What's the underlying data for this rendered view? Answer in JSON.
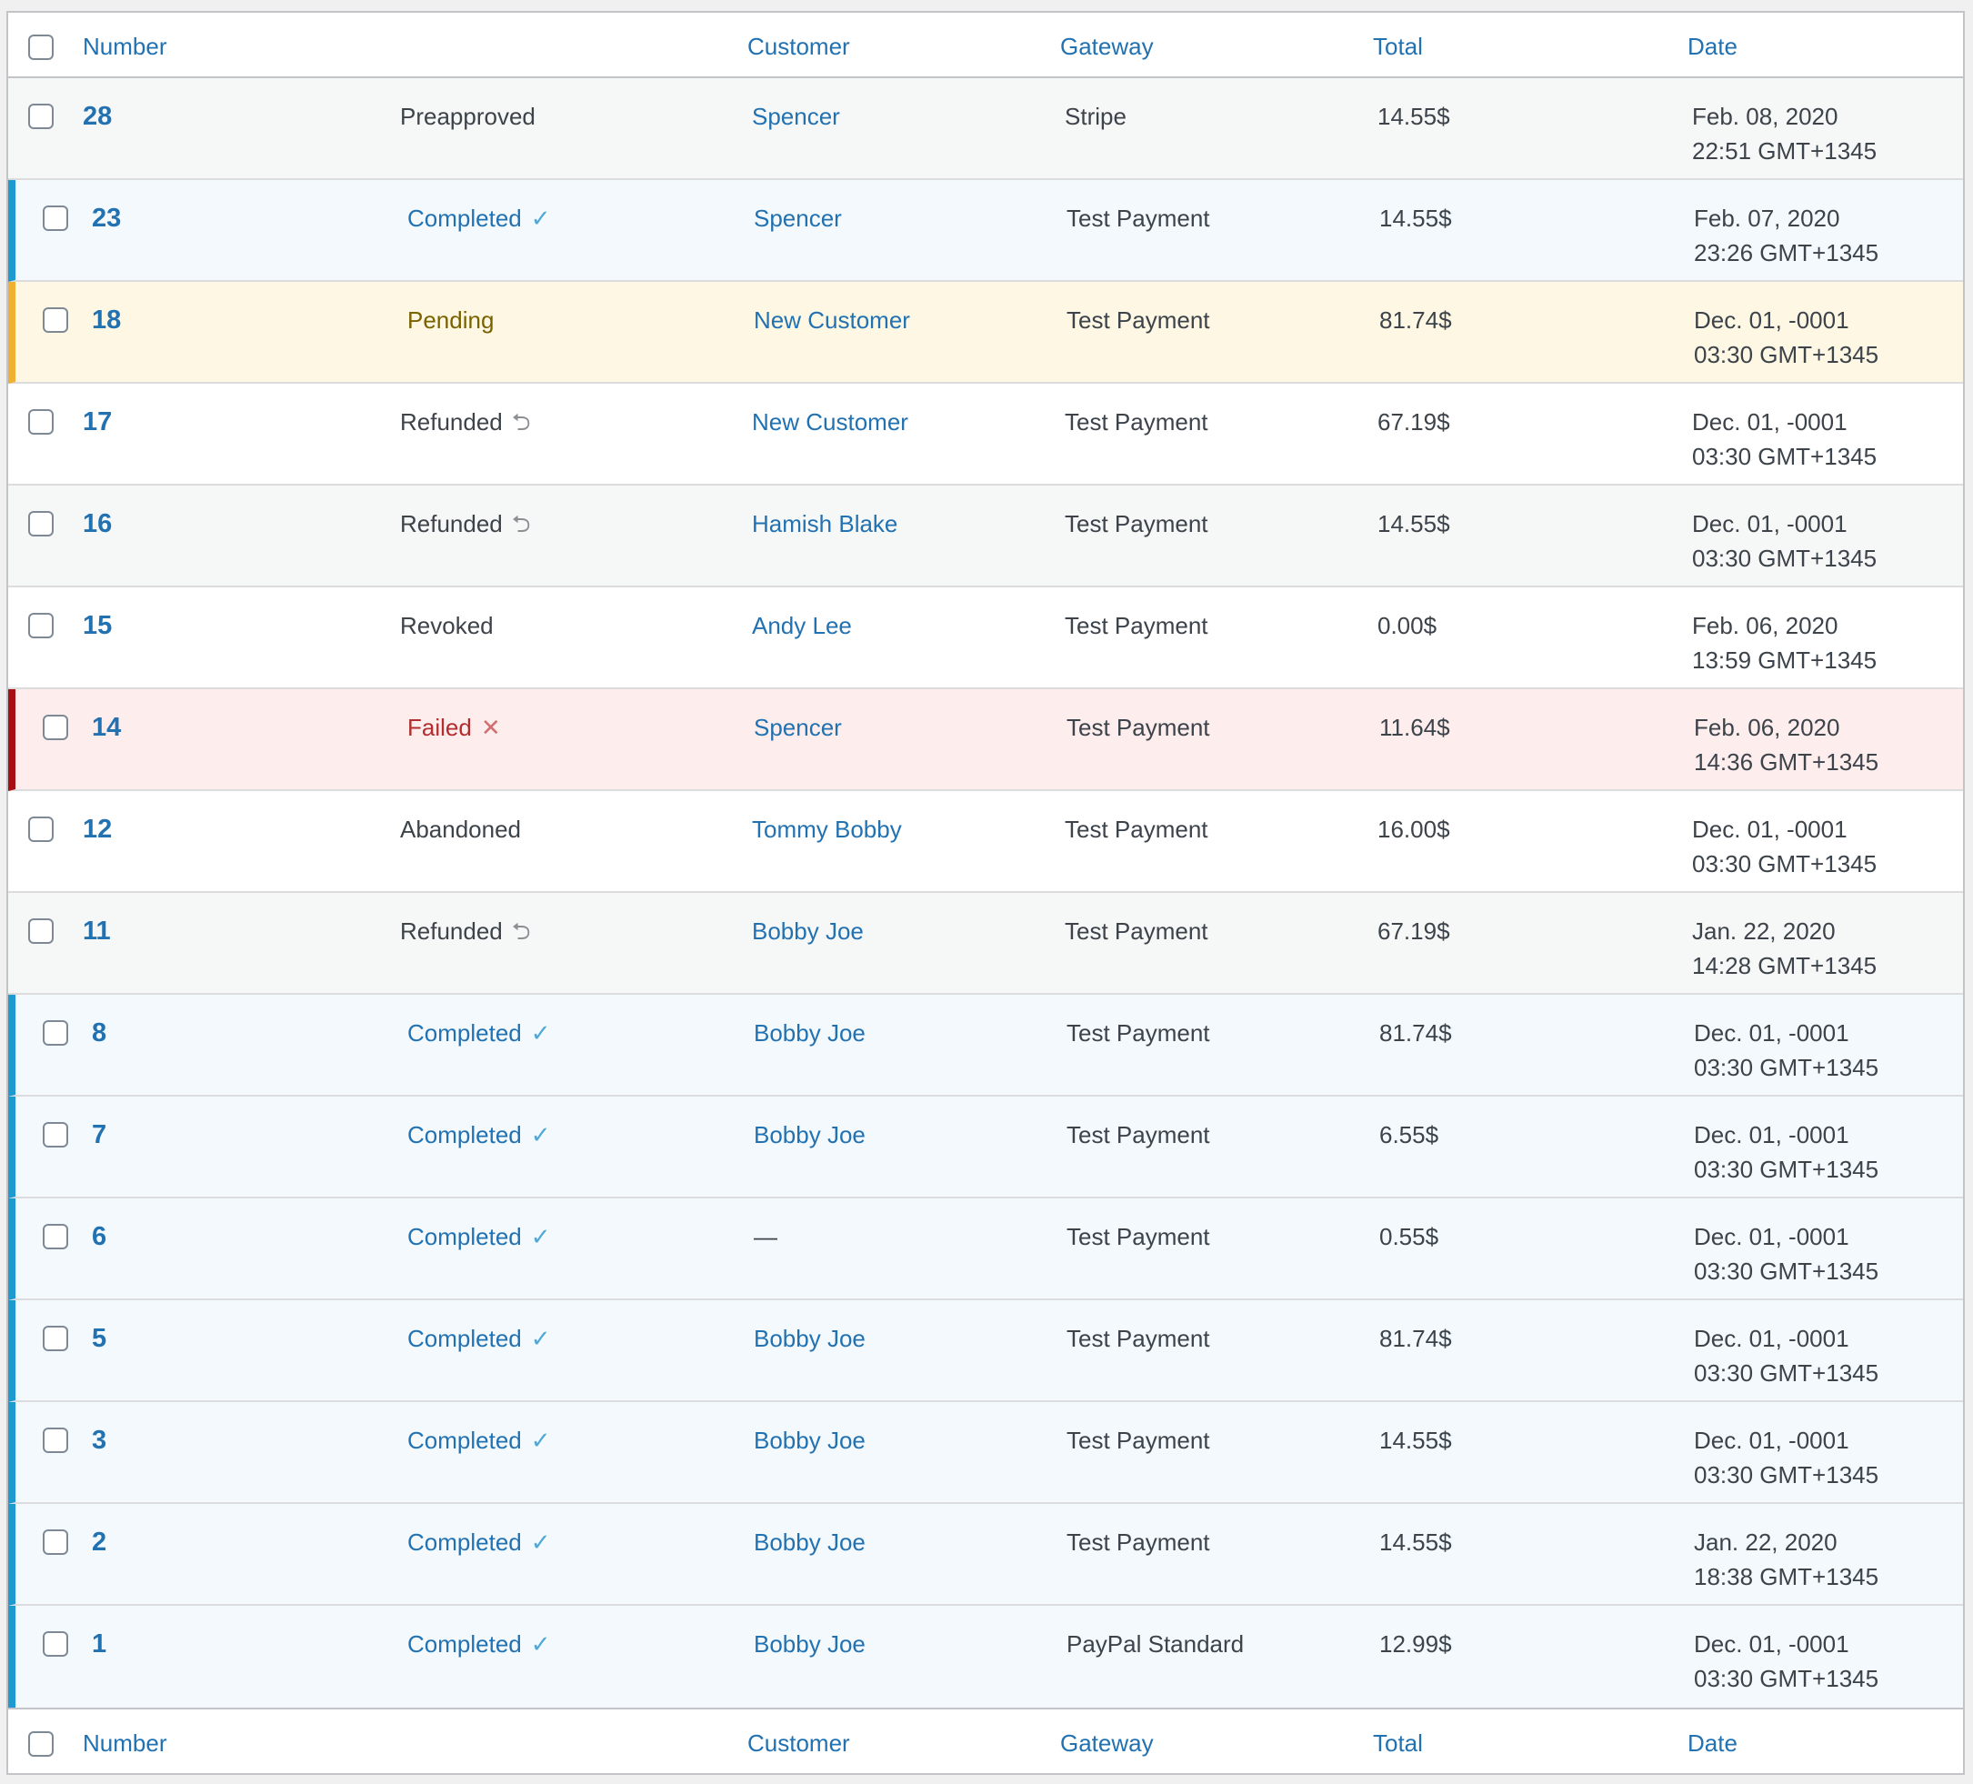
{
  "columns": {
    "number": "Number",
    "customer": "Customer",
    "gateway": "Gateway",
    "total": "Total",
    "date": "Date"
  },
  "rows": [
    {
      "number": "28",
      "status": "Preapproved",
      "status_icon": "",
      "customer": "Spencer",
      "gateway": "Stripe",
      "total": "14.55$",
      "date": "Feb. 08, 2020",
      "time": "22:51 GMT+1345"
    },
    {
      "number": "23",
      "status": "Completed",
      "status_icon": "✓",
      "customer": "Spencer",
      "gateway": "Test Payment",
      "total": "14.55$",
      "date": "Feb. 07, 2020",
      "time": "23:26 GMT+1345"
    },
    {
      "number": "18",
      "status": "Pending",
      "status_icon": "",
      "customer": "New Customer",
      "gateway": "Test Payment",
      "total": "81.74$",
      "date": "Dec. 01, -0001",
      "time": "03:30 GMT+1345"
    },
    {
      "number": "17",
      "status": "Refunded",
      "status_icon": "⮌",
      "customer": "New Customer",
      "gateway": "Test Payment",
      "total": "67.19$",
      "date": "Dec. 01, -0001",
      "time": "03:30 GMT+1345"
    },
    {
      "number": "16",
      "status": "Refunded",
      "status_icon": "⮌",
      "customer": "Hamish Blake",
      "gateway": "Test Payment",
      "total": "14.55$",
      "date": "Dec. 01, -0001",
      "time": "03:30 GMT+1345"
    },
    {
      "number": "15",
      "status": "Revoked",
      "status_icon": "",
      "customer": "Andy Lee",
      "gateway": "Test Payment",
      "total": "0.00$",
      "date": "Feb. 06, 2020",
      "time": "13:59 GMT+1345"
    },
    {
      "number": "14",
      "status": "Failed",
      "status_icon": "✕",
      "customer": "Spencer",
      "gateway": "Test Payment",
      "total": "11.64$",
      "date": "Feb. 06, 2020",
      "time": "14:36 GMT+1345"
    },
    {
      "number": "12",
      "status": "Abandoned",
      "status_icon": "",
      "customer": "Tommy Bobby",
      "gateway": "Test Payment",
      "total": "16.00$",
      "date": "Dec. 01, -0001",
      "time": "03:30 GMT+1345"
    },
    {
      "number": "11",
      "status": "Refunded",
      "status_icon": "⮌",
      "customer": "Bobby Joe",
      "gateway": "Test Payment",
      "total": "67.19$",
      "date": "Jan. 22, 2020",
      "time": "14:28 GMT+1345"
    },
    {
      "number": "8",
      "status": "Completed",
      "status_icon": "✓",
      "customer": "Bobby Joe",
      "gateway": "Test Payment",
      "total": "81.74$",
      "date": "Dec. 01, -0001",
      "time": "03:30 GMT+1345"
    },
    {
      "number": "7",
      "status": "Completed",
      "status_icon": "✓",
      "customer": "Bobby Joe",
      "gateway": "Test Payment",
      "total": "6.55$",
      "date": "Dec. 01, -0001",
      "time": "03:30 GMT+1345"
    },
    {
      "number": "6",
      "status": "Completed",
      "status_icon": "✓",
      "customer": "—",
      "gateway": "Test Payment",
      "total": "0.55$",
      "date": "Dec. 01, -0001",
      "time": "03:30 GMT+1345"
    },
    {
      "number": "5",
      "status": "Completed",
      "status_icon": "✓",
      "customer": "Bobby Joe",
      "gateway": "Test Payment",
      "total": "81.74$",
      "date": "Dec. 01, -0001",
      "time": "03:30 GMT+1345"
    },
    {
      "number": "3",
      "status": "Completed",
      "status_icon": "✓",
      "customer": "Bobby Joe",
      "gateway": "Test Payment",
      "total": "14.55$",
      "date": "Dec. 01, -0001",
      "time": "03:30 GMT+1345"
    },
    {
      "number": "2",
      "status": "Completed",
      "status_icon": "✓",
      "customer": "Bobby Joe",
      "gateway": "Test Payment",
      "total": "14.55$",
      "date": "Jan. 22, 2020",
      "time": "18:38 GMT+1345"
    },
    {
      "number": "1",
      "status": "Completed",
      "status_icon": "✓",
      "customer": "Bobby Joe",
      "gateway": "PayPal Standard",
      "total": "12.99$",
      "date": "Dec. 01, -0001",
      "time": "03:30 GMT+1345"
    }
  ],
  "colors": {
    "link": "#2271b1",
    "completed_accent": "#1e9ad0",
    "pending_accent": "#f0b032",
    "failed_accent": "#a80f15"
  }
}
